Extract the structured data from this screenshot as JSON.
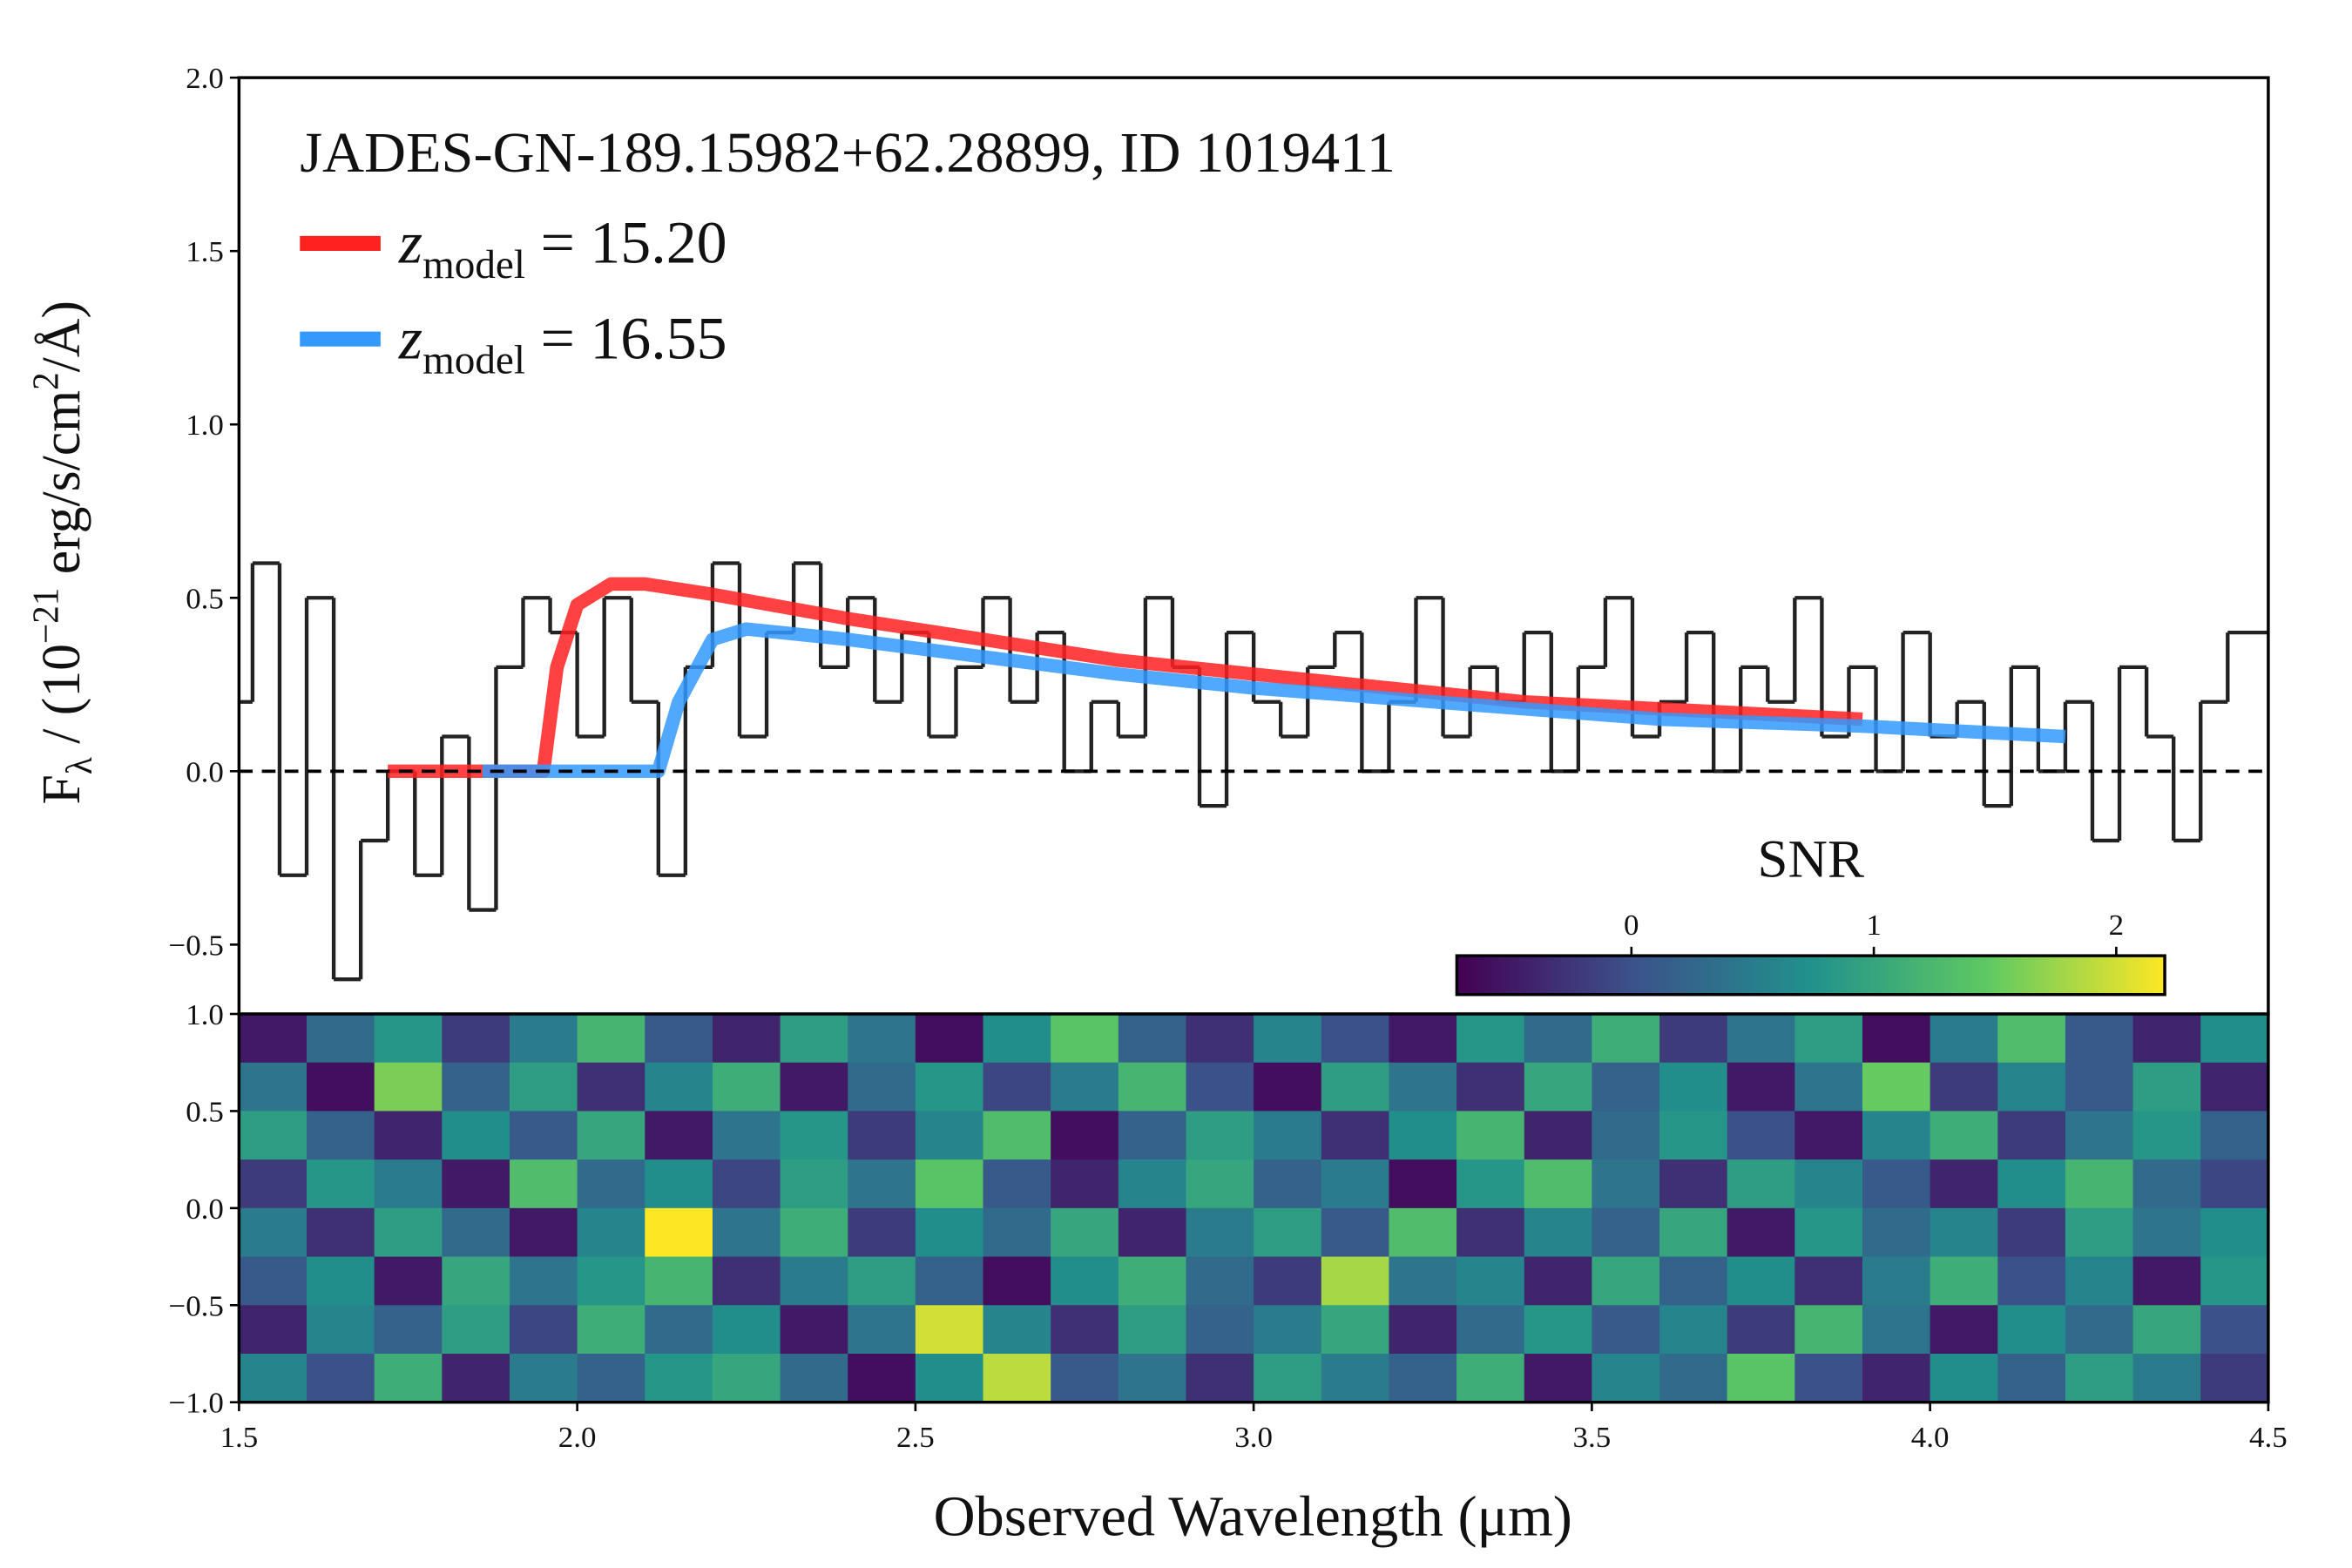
{
  "chart_data": [
    {
      "type": "line",
      "title": "JADES-GN-189.15982+62.28899, ID 1019411",
      "ylabel": [
        "F",
        "λ",
        " / (10",
        "−21",
        " erg/s/cm",
        "2",
        "/Å)"
      ],
      "xlim": [
        1.5,
        4.5
      ],
      "ylim": [
        -0.7,
        2.0
      ],
      "yticks": [
        {
          "value": -0.5,
          "label": "−0.5"
        },
        {
          "value": 0,
          "label": "0.0"
        },
        {
          "value": 0.5,
          "label": "0.5"
        },
        {
          "value": 1,
          "label": "1.0"
        },
        {
          "value": 1.5,
          "label": "1.5"
        },
        {
          "value": 2,
          "label": "2.0"
        }
      ],
      "hline": 0,
      "series": [
        {
          "color": "#222222",
          "drawstyle": "steps-mid",
          "x": [
            1.5,
            1.54,
            1.58,
            1.62,
            1.66,
            1.7,
            1.74,
            1.78,
            1.82,
            1.86,
            1.9,
            1.94,
            1.98,
            2.02,
            2.06,
            2.1,
            2.14,
            2.18,
            2.22,
            2.26,
            2.3,
            2.34,
            2.38,
            2.42,
            2.46,
            2.5,
            2.54,
            2.58,
            2.62,
            2.66,
            2.7,
            2.74,
            2.78,
            2.82,
            2.86,
            2.9,
            2.94,
            2.98,
            3.02,
            3.06,
            3.1,
            3.14,
            3.18,
            3.22,
            3.26,
            3.3,
            3.34,
            3.38,
            3.42,
            3.46,
            3.5,
            3.54,
            3.58,
            3.62,
            3.66,
            3.7,
            3.74,
            3.78,
            3.82,
            3.86,
            3.9,
            3.94,
            3.98,
            4.02,
            4.06,
            4.1,
            4.14,
            4.18,
            4.22,
            4.26,
            4.3,
            4.34,
            4.38,
            4.42,
            4.46
          ],
          "values": [
            0.2,
            0.6,
            -0.3,
            0.5,
            -0.6,
            -0.2,
            0.0,
            -0.3,
            0.1,
            -0.4,
            0.3,
            0.5,
            0.4,
            0.1,
            0.5,
            0.2,
            -0.3,
            0.3,
            0.6,
            0.1,
            0.4,
            0.6,
            0.3,
            0.5,
            0.2,
            0.4,
            0.1,
            0.3,
            0.5,
            0.2,
            0.4,
            0.0,
            0.2,
            0.1,
            0.5,
            0.3,
            -0.1,
            0.4,
            0.2,
            0.1,
            0.3,
            0.4,
            0.0,
            0.2,
            0.5,
            0.1,
            0.3,
            0.2,
            0.4,
            0.0,
            0.3,
            0.5,
            0.1,
            0.2,
            0.4,
            0.0,
            0.3,
            0.2,
            0.5,
            0.1,
            0.3,
            0.0,
            0.4,
            0.1,
            0.2,
            -0.1,
            0.3,
            0.0,
            0.2,
            -0.2,
            0.3,
            0.1,
            -0.2,
            0.2,
            0.4
          ]
        },
        {
          "name": [
            "z",
            "model",
            " = 15.20"
          ],
          "color": "#ff2020",
          "x": [
            1.72,
            1.86,
            1.95,
            1.97,
            2.0,
            2.05,
            2.1,
            2.2,
            2.4,
            2.6,
            2.8,
            3.0,
            3.2,
            3.4,
            3.6,
            3.9
          ],
          "values": [
            0,
            0,
            0,
            0.3,
            0.48,
            0.54,
            0.54,
            0.51,
            0.44,
            0.38,
            0.32,
            0.28,
            0.24,
            0.2,
            0.18,
            0.15
          ]
        },
        {
          "name": [
            "z",
            "model",
            " = 16.55"
          ],
          "color": "#3399ff",
          "x": [
            1.86,
            2.12,
            2.15,
            2.2,
            2.25,
            2.4,
            2.6,
            2.8,
            3.0,
            3.2,
            3.4,
            3.6,
            3.9,
            4.2
          ],
          "values": [
            0,
            0,
            0.2,
            0.38,
            0.41,
            0.38,
            0.33,
            0.28,
            0.24,
            0.21,
            0.18,
            0.15,
            0.13,
            0.1
          ]
        }
      ]
    },
    {
      "type": "heatmap",
      "xlabel": "Observed Wavelength (μm)",
      "xlim": [
        1.5,
        4.5
      ],
      "ylim": [
        -1,
        1
      ],
      "xticks": [
        {
          "value": 1.5,
          "label": "1.5"
        },
        {
          "value": 2,
          "label": "2.0"
        },
        {
          "value": 2.5,
          "label": "2.5"
        },
        {
          "value": 3,
          "label": "3.0"
        },
        {
          "value": 3.5,
          "label": "3.5"
        },
        {
          "value": 4,
          "label": "4.0"
        },
        {
          "value": 4.5,
          "label": "4.5"
        }
      ],
      "yticks": [
        {
          "value": -1,
          "label": "−1.0"
        },
        {
          "value": -0.5,
          "label": "−0.5"
        },
        {
          "value": 0,
          "label": "0.0"
        },
        {
          "value": 0.5,
          "label": "0.5"
        },
        {
          "value": 1,
          "label": "1.0"
        }
      ],
      "colormap": "viridis",
      "values": [
        [
          -0.5,
          0.3,
          0.8,
          -0.2,
          0.5,
          1.2,
          0.1,
          -0.4,
          0.9,
          0.4,
          -0.6,
          0.7,
          1.4,
          0.2,
          -0.3,
          0.6,
          0.0,
          -0.5,
          0.8,
          0.3,
          1.1,
          -0.2,
          0.4,
          0.9,
          -0.6,
          0.5,
          1.3,
          0.1,
          -0.4,
          0.7
        ],
        [
          0.4,
          -0.6,
          1.6,
          0.2,
          0.9,
          -0.3,
          0.6,
          1.1,
          -0.5,
          0.3,
          0.8,
          -0.1,
          0.5,
          1.2,
          0.0,
          -0.6,
          0.9,
          0.4,
          -0.3,
          1.0,
          0.2,
          0.7,
          -0.5,
          0.4,
          1.5,
          -0.2,
          0.6,
          0.1,
          0.9,
          -0.4
        ],
        [
          0.9,
          0.2,
          -0.4,
          0.7,
          0.1,
          1.0,
          -0.5,
          0.4,
          0.8,
          -0.2,
          0.6,
          1.3,
          -0.6,
          0.2,
          0.9,
          0.5,
          -0.3,
          0.7,
          1.2,
          -0.4,
          0.3,
          0.8,
          0.0,
          -0.5,
          0.6,
          1.1,
          -0.2,
          0.4,
          0.8,
          0.2
        ],
        [
          -0.2,
          0.8,
          0.5,
          -0.5,
          1.3,
          0.3,
          0.7,
          -0.1,
          0.9,
          0.4,
          1.4,
          0.1,
          -0.4,
          0.6,
          1.0,
          0.2,
          0.5,
          -0.6,
          0.8,
          1.3,
          0.4,
          -0.3,
          0.9,
          0.6,
          0.1,
          -0.4,
          0.7,
          1.2,
          0.3,
          -0.1
        ],
        [
          0.5,
          -0.3,
          0.9,
          0.3,
          -0.5,
          0.6,
          2.2,
          0.4,
          1.1,
          -0.2,
          0.7,
          0.3,
          1.0,
          -0.4,
          0.5,
          0.9,
          0.1,
          1.3,
          -0.3,
          0.6,
          0.2,
          1.0,
          -0.5,
          0.8,
          0.3,
          0.6,
          -0.2,
          0.9,
          0.4,
          0.7
        ],
        [
          0.1,
          0.7,
          -0.5,
          1.0,
          0.4,
          0.8,
          1.2,
          -0.3,
          0.5,
          0.9,
          0.2,
          -0.6,
          0.7,
          1.1,
          0.3,
          -0.2,
          1.8,
          0.4,
          0.6,
          -0.4,
          1.0,
          0.2,
          0.7,
          -0.3,
          0.5,
          1.1,
          0.0,
          0.6,
          -0.5,
          0.8
        ],
        [
          -0.4,
          0.6,
          0.2,
          0.9,
          -0.1,
          1.1,
          0.3,
          0.7,
          -0.5,
          0.4,
          2.0,
          0.6,
          -0.3,
          0.9,
          0.2,
          0.5,
          1.0,
          -0.4,
          0.3,
          0.8,
          0.1,
          0.6,
          -0.2,
          1.2,
          0.4,
          -0.5,
          0.7,
          0.3,
          1.0,
          0.0
        ],
        [
          0.6,
          0.0,
          1.1,
          -0.4,
          0.5,
          0.2,
          0.8,
          1.0,
          0.3,
          -0.6,
          0.7,
          1.9,
          0.1,
          0.4,
          -0.3,
          0.9,
          0.5,
          0.2,
          1.1,
          -0.5,
          0.6,
          0.3,
          1.4,
          0.0,
          -0.4,
          0.7,
          0.2,
          0.9,
          0.5,
          -0.2
        ]
      ],
      "colorbar": {
        "label": "SNR",
        "clim": [
          -0.72,
          2.2
        ],
        "ticks": [
          0,
          1,
          2
        ]
      }
    }
  ]
}
